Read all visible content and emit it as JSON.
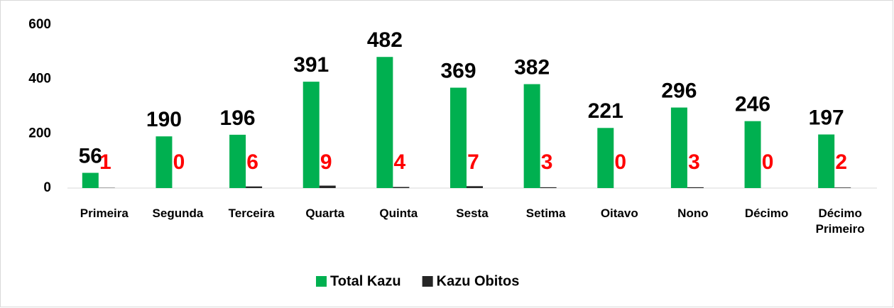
{
  "chart_data": {
    "type": "bar",
    "categories": [
      "Primeira",
      "Segunda",
      "Terceira",
      "Quarta",
      "Quinta",
      "Sesta",
      "Setima",
      "Oitavo",
      "Nono",
      "Décimo",
      "Décimo Primeiro"
    ],
    "series": [
      {
        "name": "Total Kazu",
        "color": "#00b050",
        "values": [
          56,
          190,
          196,
          391,
          482,
          369,
          382,
          221,
          296,
          246,
          197
        ]
      },
      {
        "name": "Kazu Obitos",
        "color": "#262626",
        "values": [
          1,
          0,
          6,
          9,
          4,
          7,
          3,
          0,
          3,
          0,
          2
        ]
      }
    ],
    "ylim": [
      0,
      600
    ],
    "yticks": [
      0,
      200,
      400,
      600
    ],
    "grid": false,
    "legend": "bottom"
  }
}
